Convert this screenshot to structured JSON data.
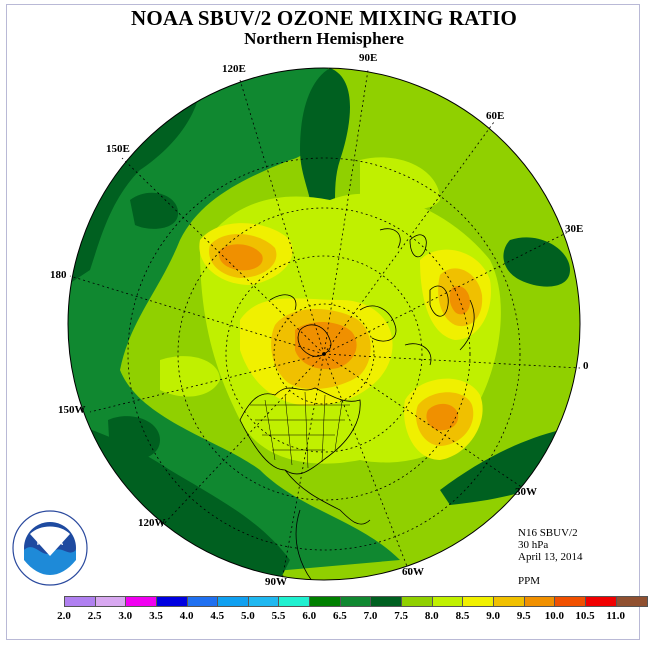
{
  "title": "NOAA SBUV/2 OZONE MIXING RATIO",
  "subtitle": "Northern Hemisphere",
  "longitude_labels": [
    "90E",
    "60E",
    "30E",
    "0",
    "30W",
    "60W",
    "90W",
    "120W",
    "150W",
    "180",
    "150E",
    "120E"
  ],
  "info": {
    "satellite": "N16 SBUV/2",
    "level": "30 hPa",
    "date": "April 13, 2014",
    "units": "PPM"
  },
  "logo": {
    "text": "NOAA",
    "ring_text": "NATIONAL OCEANIC AND ATMOSPHERIC ADMINISTRATION · U.S. DEPARTMENT OF COMMERCE"
  },
  "colorbar": {
    "ticks": [
      "2.0",
      "2.5",
      "3.0",
      "3.5",
      "4.0",
      "4.5",
      "5.0",
      "5.5",
      "6.0",
      "6.5",
      "7.0",
      "7.5",
      "8.0",
      "8.5",
      "9.0",
      "9.5",
      "10.0",
      "10.5",
      "11.0"
    ],
    "colors": [
      "#b080f0",
      "#d8a8f0",
      "#f000f0",
      "#0000e0",
      "#2070f0",
      "#10a0f0",
      "#20b8f0",
      "#20f0d0",
      "#008000",
      "#108830",
      "#006020",
      "#90d000",
      "#c0f000",
      "#f0f000",
      "#f0c000",
      "#f09000",
      "#f05000",
      "#f00000",
      "#905030"
    ]
  },
  "map_colors": {
    "c65": "#108830",
    "c7": "#006020",
    "c75": "#90d000",
    "c8": "#c0f000",
    "c85": "#f0f000",
    "c9": "#f0c000",
    "c95": "#f09000"
  }
}
